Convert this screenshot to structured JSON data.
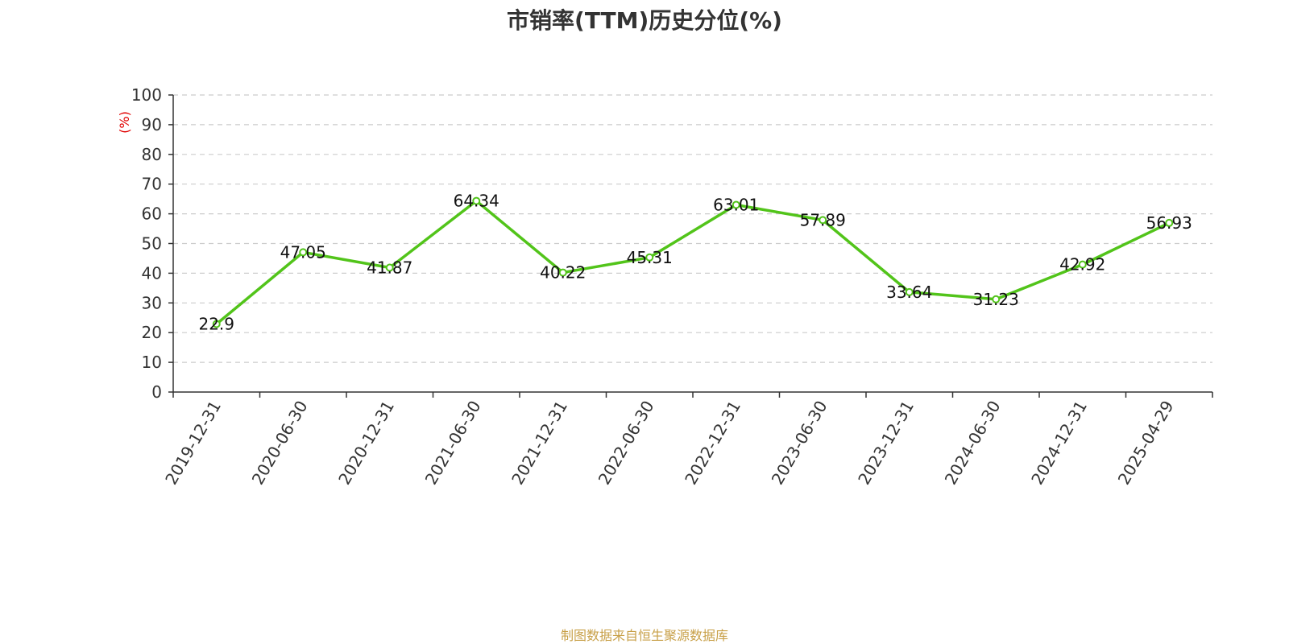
{
  "title": "市销率(TTM)历史分位(%)",
  "source": "制图数据来自恒生聚源数据库",
  "chart_data": {
    "type": "line",
    "title": "市销率(TTM)历史分位(%)",
    "ylabel": "(%)",
    "xlabel": "",
    "ylim": [
      0,
      100
    ],
    "yticks": [
      0,
      10,
      20,
      30,
      40,
      50,
      60,
      70,
      80,
      90,
      100
    ],
    "grid": true,
    "categories": [
      "2019-12-31",
      "2020-06-30",
      "2020-12-31",
      "2021-06-30",
      "2021-12-31",
      "2022-06-30",
      "2022-12-31",
      "2023-06-30",
      "2023-12-31",
      "2024-06-30",
      "2024-12-31",
      "2025-04-29"
    ],
    "series": [
      {
        "values": [
          22.9,
          47.05,
          41.87,
          64.34,
          40.22,
          45.31,
          63.01,
          57.89,
          33.64,
          31.23,
          42.92,
          56.93
        ]
      }
    ],
    "data_labels": [
      "22.9",
      "47.05",
      "41.87",
      "64.34",
      "40.22",
      "45.31",
      "63.01",
      "57.89",
      "33.64",
      "31.23",
      "42.92",
      "56.93"
    ],
    "colors": {
      "line": "#52c41a",
      "ylabel": "#e00000",
      "grid": "#cccccc",
      "source": "#c8a048"
    }
  }
}
